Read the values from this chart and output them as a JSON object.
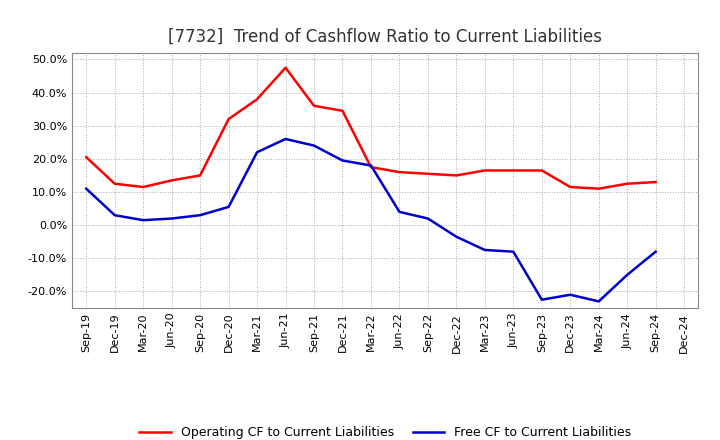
{
  "title": "[7732]  Trend of Cashflow Ratio to Current Liabilities",
  "x_labels": [
    "Sep-19",
    "Dec-19",
    "Mar-20",
    "Jun-20",
    "Sep-20",
    "Dec-20",
    "Mar-21",
    "Jun-21",
    "Sep-21",
    "Dec-21",
    "Mar-22",
    "Jun-22",
    "Sep-22",
    "Dec-22",
    "Mar-23",
    "Jun-23",
    "Sep-23",
    "Dec-23",
    "Mar-24",
    "Jun-24",
    "Sep-24",
    "Dec-24"
  ],
  "operating_cf": [
    20.5,
    12.5,
    11.5,
    13.5,
    15.0,
    32.0,
    38.0,
    47.5,
    36.0,
    34.5,
    17.5,
    16.0,
    15.5,
    15.0,
    16.5,
    16.5,
    16.5,
    11.5,
    11.0,
    12.5,
    13.0,
    null
  ],
  "free_cf": [
    11.0,
    3.0,
    1.5,
    2.0,
    3.0,
    5.5,
    22.0,
    26.0,
    24.0,
    19.5,
    18.0,
    4.0,
    2.0,
    -3.5,
    -7.5,
    -8.0,
    -22.5,
    -21.0,
    -23.0,
    -15.0,
    -8.0,
    null
  ],
  "ylim": [
    -25,
    52
  ],
  "yticks": [
    -20,
    -10,
    0,
    10,
    20,
    30,
    40,
    50
  ],
  "operating_color": "#FF0000",
  "free_color": "#0000CC",
  "background_color": "#FFFFFF",
  "grid_color": "#AAAAAA",
  "title_fontsize": 12,
  "legend_fontsize": 9,
  "tick_fontsize": 8
}
